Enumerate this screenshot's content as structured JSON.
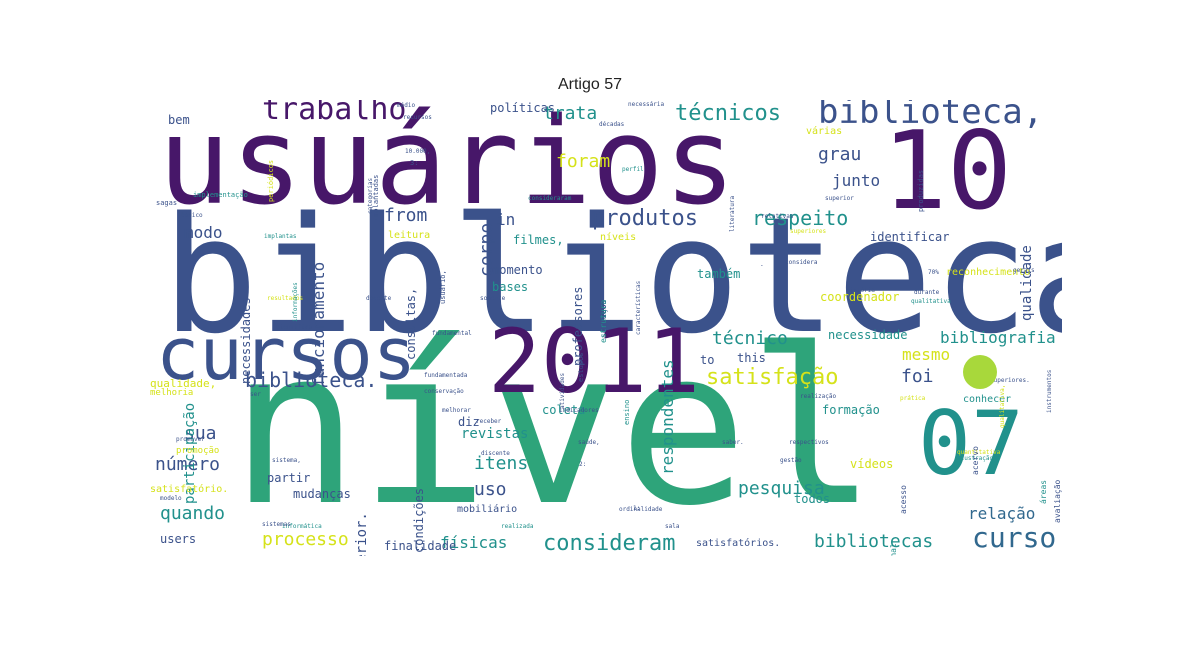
{
  "title": "Artigo 57",
  "palette": {
    "purple": "#471769",
    "indigo": "#3b528b",
    "teal": "#21918c",
    "green": "#2ea47a",
    "lime": "#a8d83b",
    "yellow": "#d5e21a",
    "steel": "#31688e"
  },
  "words": [
    {
      "text": "usuários",
      "color": "purple",
      "rot": 0
    },
    {
      "text": "biblioteca",
      "color": "indigo",
      "rot": 0
    },
    {
      "text": "nível",
      "color": "green",
      "rot": 0
    },
    {
      "text": "10",
      "color": "purple",
      "rot": 0
    },
    {
      "text": "2011",
      "color": "purple",
      "rot": 0
    },
    {
      "text": "cursos",
      "color": "indigo",
      "rot": 0
    },
    {
      "text": "07",
      "color": "teal",
      "rot": 0
    },
    {
      "text": "biblioteca,",
      "color": "indigo",
      "rot": 0
    },
    {
      "text": "trabalho",
      "color": "purple",
      "rot": 0
    },
    {
      "text": "técnicos",
      "color": "teal",
      "rot": 0
    },
    {
      "text": "produtos",
      "color": "indigo",
      "rot": 0
    },
    {
      "text": "respeito",
      "color": "teal",
      "rot": 0
    },
    {
      "text": "biblioteca.",
      "color": "indigo",
      "rot": 0
    },
    {
      "text": "satisfação",
      "color": "yellow",
      "rot": 0
    },
    {
      "text": "curso",
      "color": "steel",
      "rot": 0
    },
    {
      "text": "consideram",
      "color": "teal",
      "rot": 0
    },
    {
      "text": "processo",
      "color": "yellow",
      "rot": 0
    },
    {
      "text": "itens",
      "color": "teal",
      "rot": 0
    },
    {
      "text": "uso",
      "color": "indigo",
      "rot": 0
    },
    {
      "text": "pesquisa",
      "color": "teal",
      "rot": 0
    },
    {
      "text": "técnico",
      "color": "teal",
      "rot": 0
    },
    {
      "text": "sua",
      "color": "indigo",
      "rot": 0
    },
    {
      "text": "número",
      "color": "indigo",
      "rot": 0
    },
    {
      "text": "quando",
      "color": "teal",
      "rot": 0
    },
    {
      "text": "foi",
      "color": "indigo",
      "rot": 0
    },
    {
      "text": "mesmo",
      "color": "yellow",
      "rot": 0
    },
    {
      "text": "grau",
      "color": "indigo",
      "rot": 0
    },
    {
      "text": "junto",
      "color": "indigo",
      "rot": 0
    },
    {
      "text": "trata",
      "color": "teal",
      "rot": 0
    },
    {
      "text": "foram",
      "color": "yellow",
      "rot": 0
    },
    {
      "text": "from",
      "color": "indigo",
      "rot": 0
    },
    {
      "text": "in",
      "color": "indigo",
      "rot": 0
    },
    {
      "text": "modo",
      "color": "indigo",
      "rot": 0
    },
    {
      "text": "bibliotecas",
      "color": "teal",
      "rot": 0
    },
    {
      "text": "físicas",
      "color": "teal",
      "rot": 0
    },
    {
      "text": "relação",
      "color": "steel",
      "rot": 0
    },
    {
      "text": "bibliografia",
      "color": "teal",
      "rot": 0
    },
    {
      "text": "necessidade",
      "color": "teal",
      "rot": 0
    },
    {
      "text": "revistas",
      "color": "teal",
      "rot": 0
    },
    {
      "text": "funcionamento",
      "color": "indigo",
      "rot": -90
    },
    {
      "text": "corpo",
      "color": "indigo",
      "rot": -90
    },
    {
      "text": "respondentes",
      "color": "teal",
      "rot": -90
    },
    {
      "text": "superior.",
      "color": "indigo",
      "rot": -90
    },
    {
      "text": "qualidade",
      "color": "indigo",
      "rot": -90
    },
    {
      "text": "necessidades",
      "color": "indigo",
      "rot": -90
    },
    {
      "text": "professores",
      "color": "indigo",
      "rot": -90
    },
    {
      "text": "consultas,",
      "color": "indigo",
      "rot": -90
    },
    {
      "text": "condições",
      "color": "indigo",
      "rot": -90
    },
    {
      "text": "participação",
      "color": "teal",
      "rot": -90
    },
    {
      "text": "mudanças",
      "color": "indigo",
      "rot": 0
    },
    {
      "text": "partir",
      "color": "indigo",
      "rot": 0
    },
    {
      "text": "users",
      "color": "indigo",
      "rot": 0
    },
    {
      "text": "finalidade",
      "color": "indigo",
      "rot": 0
    },
    {
      "text": "todos",
      "color": "teal",
      "rot": 0
    },
    {
      "text": "vídeos",
      "color": "yellow",
      "rot": 0
    },
    {
      "text": "formação",
      "color": "teal",
      "rot": 0
    },
    {
      "text": "conhecer",
      "color": "teal",
      "rot": 0
    },
    {
      "text": "coordenador",
      "color": "yellow",
      "rot": 0
    },
    {
      "text": "momento",
      "color": "indigo",
      "rot": 0
    },
    {
      "text": "bases",
      "color": "teal",
      "rot": 0
    },
    {
      "text": "filmes,",
      "color": "teal",
      "rot": 0
    },
    {
      "text": "leitura",
      "color": "yellow",
      "rot": 0
    },
    {
      "text": "coleta",
      "color": "teal",
      "rot": 0
    },
    {
      "text": "diz",
      "color": "indigo",
      "rot": 0
    },
    {
      "text": "to",
      "color": "indigo",
      "rot": 0
    },
    {
      "text": "this",
      "color": "indigo",
      "rot": 0
    },
    {
      "text": "identificar",
      "color": "indigo",
      "rot": 0
    },
    {
      "text": "reconhecimento",
      "color": "yellow",
      "rot": 0
    },
    {
      "text": "também",
      "color": "teal",
      "rot": 0
    },
    {
      "text": "bem",
      "color": "indigo",
      "rot": 0
    },
    {
      "text": "políticas",
      "color": "indigo",
      "rot": 0
    },
    {
      "text": "várias",
      "color": "yellow",
      "rot": 0
    },
    {
      "text": "mobiliário",
      "color": "indigo",
      "rot": 0
    },
    {
      "text": "satisfatórios.",
      "color": "indigo",
      "rot": 0
    },
    {
      "text": "qualidade,",
      "color": "yellow",
      "rot": 0
    },
    {
      "text": "melhoria",
      "color": "yellow",
      "rot": 0
    },
    {
      "text": "satisfatório.",
      "color": "yellow",
      "rot": 0
    },
    {
      "text": "promoção",
      "color": "yellow",
      "rot": 0
    },
    {
      "text": "níveis",
      "color": "yellow",
      "rot": 0
    },
    {
      "text": "consideraram",
      "color": "teal",
      "rot": 0
    },
    {
      "text": "superior",
      "color": "indigo",
      "rot": 0
    },
    {
      "text": "somente",
      "color": "indigo",
      "rot": 0
    },
    {
      "text": "história",
      "color": "indigo",
      "rot": 0
    },
    {
      "text": "durante",
      "color": "indigo",
      "rot": 0
    },
    {
      "text": "qualitativa",
      "color": "teal",
      "rot": 0
    },
    {
      "text": "superiores.",
      "color": "indigo",
      "rot": 0
    },
    {
      "text": "prática",
      "color": "yellow",
      "rot": 0
    },
    {
      "text": "realização",
      "color": "indigo",
      "rot": 0
    },
    {
      "text": "melhorar",
      "color": "indigo",
      "rot": 0
    },
    {
      "text": "indicadores",
      "color": "indigo",
      "rot": 0
    },
    {
      "text": "receber",
      "color": "indigo",
      "rot": 0
    },
    {
      "text": "discente",
      "color": "indigo",
      "rot": 0
    },
    {
      "text": "conservação",
      "color": "indigo",
      "rot": 0
    },
    {
      "text": "fundamentada",
      "color": "indigo",
      "rot": 0
    },
    {
      "text": "fundamental",
      "color": "indigo",
      "rot": 0
    },
    {
      "text": "respectivos",
      "color": "indigo",
      "rot": 0
    },
    {
      "text": "saber.",
      "color": "indigo",
      "rot": 0
    },
    {
      "text": "quantitativa",
      "color": "yellow",
      "rot": 0
    },
    {
      "text": "realizada",
      "color": "teal",
      "rot": 0
    },
    {
      "text": "sala",
      "color": "indigo",
      "rot": 0
    },
    {
      "text": "ordinalidade",
      "color": "indigo",
      "rot": 0
    },
    {
      "text": "informática",
      "color": "teal",
      "rot": 0
    },
    {
      "text": "modelo",
      "color": "indigo",
      "rot": 0
    },
    {
      "text": "sistema,",
      "color": "indigo",
      "rot": 0
    },
    {
      "text": "promover",
      "color": "indigo",
      "rot": 0
    },
    {
      "text": "implantas",
      "color": "teal",
      "rot": 0
    },
    {
      "text": "básico",
      "color": "indigo",
      "rot": 0
    },
    {
      "text": "resultados",
      "color": "yellow",
      "rot": 0
    },
    {
      "text": "científica",
      "color": "indigo",
      "rot": 0
    },
    {
      "text": "perfil",
      "color": "teal",
      "rot": 0
    },
    {
      "text": "necessária",
      "color": "indigo",
      "rot": 0
    },
    {
      "text": "médio",
      "color": "indigo",
      "rot": 0
    },
    {
      "text": "recursos",
      "color": "indigo",
      "rot": 0
    },
    {
      "text": "décadas",
      "color": "indigo",
      "rot": 0
    },
    {
      "text": "sagas",
      "color": "indigo",
      "rot": 0
    },
    {
      "text": "implementação",
      "color": "teal",
      "rot": 0
    },
    {
      "text": "periódicos",
      "color": "yellow",
      "rot": -90
    },
    {
      "text": "implantadas",
      "color": "indigo",
      "rot": -90
    },
    {
      "text": "categorias",
      "color": "indigo",
      "rot": -90
    },
    {
      "text": "literatura",
      "color": "indigo",
      "rot": -90
    },
    {
      "text": "informações",
      "color": "teal",
      "rot": -90
    },
    {
      "text": "instrumentos",
      "color": "indigo",
      "rot": -90
    },
    {
      "text": "profissional",
      "color": "teal",
      "rot": -90
    },
    {
      "text": "características",
      "color": "indigo",
      "rot": -90
    },
    {
      "text": "qualitativa,",
      "color": "yellow",
      "rot": -90
    },
    {
      "text": "gerais",
      "color": "indigo",
      "rot": 0
    },
    {
      "text": "superiores",
      "color": "yellow",
      "rot": 0
    },
    {
      "text": "considera",
      "color": "indigo",
      "rot": 0
    },
    {
      "text": "relativas",
      "color": "indigo",
      "rot": 0
    },
    {
      "text": "sistemas",
      "color": "indigo",
      "rot": 0
    },
    {
      "text": "docente",
      "color": "indigo",
      "rot": 0
    },
    {
      "text": "2:",
      "color": "indigo",
      "rot": 0
    },
    {
      "text": "1:",
      "color": "indigo",
      "rot": 0
    },
    {
      "text": "3:",
      "color": "indigo",
      "rot": 0
    },
    {
      "text": "-",
      "color": "indigo",
      "rot": 0
    },
    {
      "text": "10.000,",
      "color": "indigo",
      "rot": 0
    },
    {
      "text": "70%",
      "color": "indigo",
      "rot": 0
    },
    {
      "text": "ilustração",
      "color": "teal",
      "rot": 0
    },
    {
      "text": "gestão",
      "color": "indigo",
      "rot": 0
    },
    {
      "text": "saúde,",
      "color": "indigo",
      "rot": 0
    },
    {
      "text": "ser",
      "color": "indigo",
      "rot": 0
    },
    {
      "text": "atividades",
      "color": "indigo",
      "rot": -90
    },
    {
      "text": "estudos",
      "color": "indigo",
      "rot": -90
    },
    {
      "text": "produzidas",
      "color": "indigo",
      "rot": -90
    },
    {
      "text": "acervo",
      "color": "indigo",
      "rot": -90
    },
    {
      "text": "áreas",
      "color": "teal",
      "rot": -90
    },
    {
      "text": "avaliação",
      "color": "indigo",
      "rot": -90
    },
    {
      "text": "ensino",
      "color": "teal",
      "rot": -90
    },
    {
      "text": "usuário,",
      "color": "indigo",
      "rot": -90
    },
    {
      "text": "acesso",
      "color": "indigo",
      "rot": -90
    },
    {
      "text": "serviços",
      "color": "indigo",
      "rot": -90
    },
    {
      "text": "dados",
      "color": "indigo",
      "rot": -90
    },
    {
      "text": "estrutura",
      "color": "teal",
      "rot": -90
    }
  ]
}
